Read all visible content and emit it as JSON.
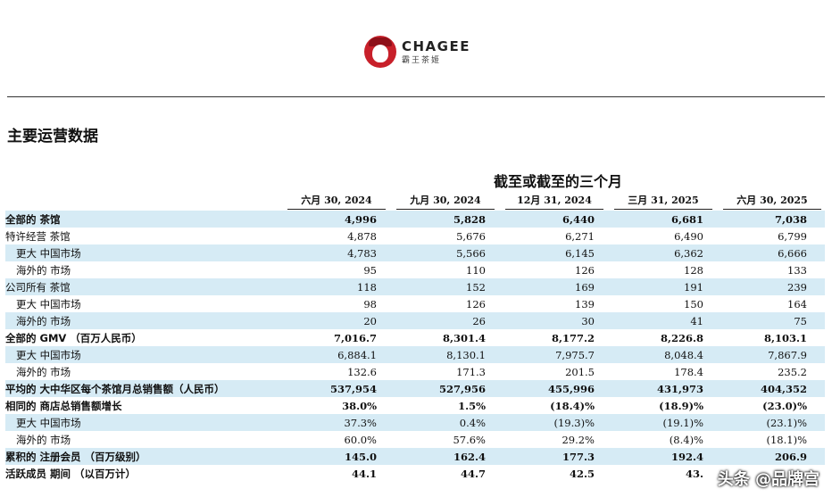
{
  "header": {
    "brand": "CHAGEE",
    "brand_sub": "霸王茶姬",
    "section_title": "主要运营数据",
    "period_title": "截至或截至的三个月"
  },
  "columns": [
    "六月 30, 2024",
    "九月 30, 2024",
    "12月 31, 2024",
    "三月 31, 2025",
    "六月 30, 2025"
  ],
  "rows": [
    {
      "label": "全部的 茶馆",
      "style": "bold",
      "highlight": true,
      "values": [
        "4,996",
        "5,828",
        "6,440",
        "6,681",
        "7,038"
      ]
    },
    {
      "label": "特许经营 茶馆",
      "style": "",
      "highlight": false,
      "values": [
        "4,878",
        "5,676",
        "6,271",
        "6,490",
        "6,799"
      ]
    },
    {
      "label": "更大 中国市场",
      "style": "ind",
      "highlight": true,
      "values": [
        "4,783",
        "5,566",
        "6,145",
        "6,362",
        "6,666"
      ]
    },
    {
      "label": "海外的 市场",
      "style": "ind",
      "highlight": false,
      "values": [
        "95",
        "110",
        "126",
        "128",
        "133"
      ]
    },
    {
      "label": "公司所有 茶馆",
      "style": "",
      "highlight": true,
      "values": [
        "118",
        "152",
        "169",
        "191",
        "239"
      ]
    },
    {
      "label": "更大 中国市场",
      "style": "ind",
      "highlight": false,
      "values": [
        "98",
        "126",
        "139",
        "150",
        "164"
      ]
    },
    {
      "label": "海外的 市场",
      "style": "ind",
      "highlight": true,
      "values": [
        "20",
        "26",
        "30",
        "41",
        "75"
      ]
    },
    {
      "label": "全部的 GMV （百万人民币）",
      "style": "bold",
      "highlight": false,
      "values": [
        "7,016.7",
        "8,301.4",
        "8,177.2",
        "8,226.8",
        "8,103.1"
      ]
    },
    {
      "label": "更大 中国市场",
      "style": "ind",
      "highlight": true,
      "values": [
        "6,884.1",
        "8,130.1",
        "7,975.7",
        "8,048.4",
        "7,867.9"
      ]
    },
    {
      "label": "海外的 市场",
      "style": "ind",
      "highlight": false,
      "values": [
        "132.6",
        "171.3",
        "201.5",
        "178.4",
        "235.2"
      ]
    },
    {
      "label": "平均的 大中华区每个茶馆月总销售额（人民币）",
      "style": "bold",
      "highlight": true,
      "values": [
        "537,954",
        "527,956",
        "455,996",
        "431,973",
        "404,352"
      ]
    },
    {
      "label": "相同的 商店总销售额增长",
      "style": "bold",
      "highlight": false,
      "values": [
        "38.0%",
        "1.5%",
        "(18.4)%",
        "(18.9)%",
        "(23.0)%"
      ]
    },
    {
      "label": "更大 中国市场",
      "style": "ind",
      "highlight": true,
      "values": [
        "37.3%",
        "0.4%",
        "(19.3)%",
        "(19.1)%",
        "(23.1)%"
      ]
    },
    {
      "label": "海外的 市场",
      "style": "ind",
      "highlight": false,
      "values": [
        "60.0%",
        "57.6%",
        "29.2%",
        "(8.4)%",
        "(18.1)%"
      ]
    },
    {
      "label": "累积的 注册会员 （百万级别）",
      "style": "bold",
      "highlight": true,
      "values": [
        "145.0",
        "162.4",
        "177.3",
        "192.4",
        "206.9"
      ]
    },
    {
      "label": "活跃成员 期间 （以百万计）",
      "style": "bold",
      "highlight": false,
      "values": [
        "44.1",
        "44.7",
        "42.5",
        "43.",
        ""
      ]
    }
  ],
  "watermark": "头条 @品牌宫"
}
